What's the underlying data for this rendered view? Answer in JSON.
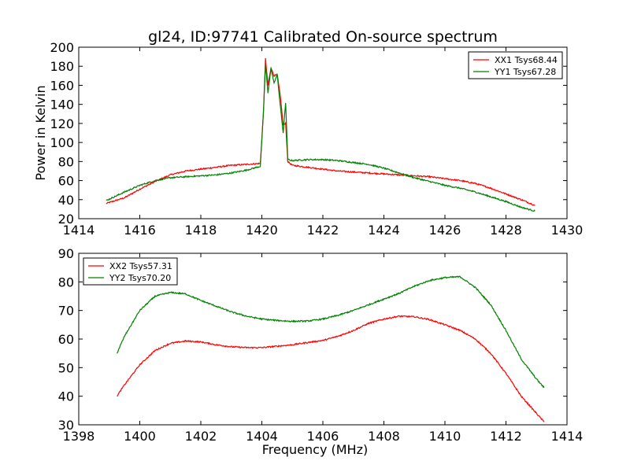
{
  "figure": {
    "title": "gl24, ID:97741 Calibrated On-source spectrum"
  },
  "chart_data": [
    {
      "type": "line",
      "title": "gl24, ID:97741 Calibrated On-source spectrum",
      "xlabel": "",
      "ylabel": "Power in Kelvin",
      "xlim": [
        1414,
        1430
      ],
      "ylim": [
        20,
        200
      ],
      "xticks": [
        "1414",
        "1416",
        "1418",
        "1420",
        "1422",
        "1424",
        "1426",
        "1428",
        "1430"
      ],
      "yticks": [
        "20",
        "40",
        "60",
        "80",
        "100",
        "120",
        "140",
        "160",
        "180",
        "200"
      ],
      "legend_position": "top-right",
      "grid": false,
      "series": [
        {
          "name": "XX1 Tsys68.44",
          "color": "#ff0000",
          "x": [
            1414.9,
            1415.5,
            1416.0,
            1416.5,
            1417.0,
            1417.5,
            1418.0,
            1418.5,
            1419.0,
            1419.5,
            1419.95,
            1420.05,
            1420.12,
            1420.2,
            1420.3,
            1420.4,
            1420.5,
            1420.6,
            1420.7,
            1420.78,
            1420.85,
            1421.0,
            1421.5,
            1422.0,
            1422.5,
            1423.0,
            1423.5,
            1424.0,
            1424.5,
            1425.0,
            1425.5,
            1426.0,
            1426.5,
            1427.0,
            1427.5,
            1428.0,
            1428.5,
            1428.95
          ],
          "y": [
            36,
            42,
            51,
            59,
            66,
            70,
            72,
            74,
            76,
            77,
            78,
            130,
            188,
            160,
            178,
            170,
            172,
            150,
            118,
            120,
            80,
            76,
            74,
            72,
            70,
            69,
            68,
            67,
            66,
            65,
            64,
            62,
            60,
            57,
            52,
            46,
            40,
            34
          ]
        },
        {
          "name": "YY1 Tsys67.28",
          "color": "#008000",
          "x": [
            1414.9,
            1415.5,
            1416.0,
            1416.5,
            1417.0,
            1417.5,
            1418.0,
            1418.5,
            1419.0,
            1419.5,
            1419.95,
            1420.05,
            1420.12,
            1420.2,
            1420.3,
            1420.4,
            1420.5,
            1420.6,
            1420.7,
            1420.78,
            1420.85,
            1421.0,
            1421.5,
            1422.0,
            1422.5,
            1423.0,
            1423.5,
            1424.0,
            1424.5,
            1425.0,
            1425.5,
            1426.0,
            1426.5,
            1427.0,
            1427.5,
            1428.0,
            1428.5,
            1428.95
          ],
          "y": [
            39,
            48,
            55,
            60,
            63,
            64,
            65,
            66,
            68,
            71,
            75,
            130,
            182,
            152,
            178,
            162,
            172,
            140,
            110,
            142,
            82,
            81,
            82,
            82,
            81,
            79,
            77,
            73,
            68,
            63,
            59,
            55,
            52,
            48,
            43,
            38,
            32,
            28
          ]
        }
      ]
    },
    {
      "type": "line",
      "title": "",
      "xlabel": "Frequency (MHz)",
      "ylabel": "",
      "xlim": [
        1398,
        1414
      ],
      "ylim": [
        30,
        90
      ],
      "xticks": [
        "1398",
        "1400",
        "1402",
        "1404",
        "1406",
        "1408",
        "1410",
        "1412",
        "1414"
      ],
      "yticks": [
        "30",
        "40",
        "50",
        "60",
        "70",
        "80",
        "90"
      ],
      "legend_position": "top-left",
      "grid": false,
      "series": [
        {
          "name": "XX2 Tsys57.31",
          "color": "#ff0000",
          "x": [
            1399.25,
            1399.5,
            1400.0,
            1400.5,
            1401.0,
            1401.5,
            1402.0,
            1402.5,
            1403.0,
            1403.5,
            1404.0,
            1404.5,
            1405.0,
            1405.5,
            1406.0,
            1406.5,
            1407.0,
            1407.5,
            1408.0,
            1408.5,
            1409.0,
            1409.5,
            1410.0,
            1410.5,
            1411.0,
            1411.5,
            1412.0,
            1412.5,
            1413.0,
            1413.25
          ],
          "y": [
            40,
            44,
            51,
            56,
            58.5,
            59.3,
            59,
            58,
            57.3,
            57,
            57,
            57.5,
            58,
            58.8,
            59.5,
            61,
            63,
            65.5,
            67,
            68,
            67.8,
            66.8,
            65,
            63,
            60,
            55,
            48,
            40,
            34,
            31
          ]
        },
        {
          "name": "YY2 Tsys70.20",
          "color": "#008000",
          "x": [
            1399.25,
            1399.5,
            1400.0,
            1400.5,
            1401.0,
            1401.5,
            1402.0,
            1402.5,
            1403.0,
            1403.5,
            1404.0,
            1404.5,
            1405.0,
            1405.5,
            1406.0,
            1406.5,
            1407.0,
            1407.5,
            1408.0,
            1408.5,
            1409.0,
            1409.5,
            1410.0,
            1410.5,
            1411.0,
            1411.5,
            1412.0,
            1412.5,
            1413.0,
            1413.25
          ],
          "y": [
            55,
            61,
            70,
            75,
            76.3,
            75.8,
            73.5,
            71.5,
            69.5,
            68,
            67,
            66.5,
            66.2,
            66.3,
            67,
            68.3,
            70,
            72,
            74,
            76,
            78.5,
            80.5,
            81.5,
            81.8,
            78,
            72,
            63,
            53,
            46,
            43
          ]
        }
      ]
    }
  ]
}
